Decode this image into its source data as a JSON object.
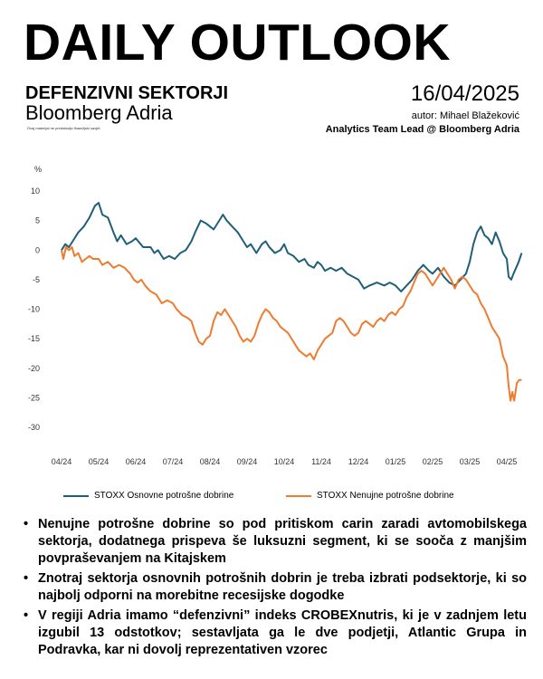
{
  "header": {
    "title": "DAILY OUTLOOK",
    "subtitle": "DEFENZIVNI SEKTORJI",
    "brand": "Bloomberg Adria",
    "disclaimer": "Ovaj materijal ne predstavlja finančijski savjet.",
    "date": "16/04/2025",
    "author": "autor: Mihael Blažeković",
    "role": "Analytics Team Lead @ Bloomberg Adria"
  },
  "chart_data": {
    "type": "line",
    "ylabel": "%",
    "ylim": [
      -30,
      10
    ],
    "yticks": [
      10,
      5,
      0,
      -5,
      -10,
      -15,
      -20,
      -25,
      -30
    ],
    "xticks": [
      "04/24",
      "05/24",
      "06/24",
      "07/24",
      "08/24",
      "09/24",
      "10/24",
      "11/24",
      "12/24",
      "01/25",
      "02/25",
      "03/25",
      "04/25"
    ],
    "grid": false,
    "legend": "bottom",
    "series": [
      {
        "name": "STOXX Osnovne potrošne dobrine",
        "color": "#1f5f7a",
        "points": [
          [
            0.0,
            0
          ],
          [
            0.1,
            1
          ],
          [
            0.2,
            0.5
          ],
          [
            0.3,
            1.5
          ],
          [
            0.45,
            3
          ],
          [
            0.6,
            4
          ],
          [
            0.75,
            5.5
          ],
          [
            0.9,
            7.5
          ],
          [
            1.0,
            8
          ],
          [
            1.1,
            6
          ],
          [
            1.25,
            5.5
          ],
          [
            1.4,
            3
          ],
          [
            1.5,
            1.5
          ],
          [
            1.6,
            2.5
          ],
          [
            1.75,
            1
          ],
          [
            1.9,
            1.5
          ],
          [
            2.0,
            2
          ],
          [
            2.2,
            0.5
          ],
          [
            2.4,
            0.5
          ],
          [
            2.5,
            -0.5
          ],
          [
            2.6,
            0
          ],
          [
            2.75,
            -1.5
          ],
          [
            2.9,
            -1
          ],
          [
            3.05,
            -1.5
          ],
          [
            3.2,
            -0.5
          ],
          [
            3.35,
            0
          ],
          [
            3.5,
            1.5
          ],
          [
            3.6,
            3
          ],
          [
            3.75,
            5
          ],
          [
            3.9,
            4.5
          ],
          [
            4.0,
            4
          ],
          [
            4.1,
            3.5
          ],
          [
            4.25,
            5
          ],
          [
            4.35,
            6
          ],
          [
            4.45,
            5
          ],
          [
            4.6,
            4
          ],
          [
            4.75,
            3
          ],
          [
            4.9,
            1.5
          ],
          [
            5.0,
            0.5
          ],
          [
            5.1,
            1
          ],
          [
            5.25,
            -0.5
          ],
          [
            5.4,
            1
          ],
          [
            5.5,
            1.5
          ],
          [
            5.6,
            0.5
          ],
          [
            5.75,
            -0.5
          ],
          [
            5.9,
            0
          ],
          [
            6.0,
            1
          ],
          [
            6.1,
            -0.5
          ],
          [
            6.25,
            -1
          ],
          [
            6.4,
            -2
          ],
          [
            6.55,
            -1.5
          ],
          [
            6.65,
            -2.5
          ],
          [
            6.8,
            -3
          ],
          [
            6.9,
            -2
          ],
          [
            7.0,
            -2.5
          ],
          [
            7.1,
            -3.5
          ],
          [
            7.25,
            -3
          ],
          [
            7.4,
            -3.5
          ],
          [
            7.55,
            -3
          ],
          [
            7.7,
            -4
          ],
          [
            7.85,
            -4.5
          ],
          [
            8.0,
            -5
          ],
          [
            8.15,
            -6.5
          ],
          [
            8.3,
            -6
          ],
          [
            8.5,
            -5.5
          ],
          [
            8.7,
            -6
          ],
          [
            8.85,
            -5.5
          ],
          [
            9.0,
            -6
          ],
          [
            9.15,
            -7
          ],
          [
            9.3,
            -6
          ],
          [
            9.45,
            -5
          ],
          [
            9.6,
            -3.5
          ],
          [
            9.75,
            -2.5
          ],
          [
            9.9,
            -3.5
          ],
          [
            10.0,
            -4
          ],
          [
            10.15,
            -3
          ],
          [
            10.3,
            -4.5
          ],
          [
            10.45,
            -5.5
          ],
          [
            10.6,
            -6
          ],
          [
            10.75,
            -5
          ],
          [
            10.9,
            -4
          ],
          [
            11.0,
            -2
          ],
          [
            11.1,
            1
          ],
          [
            11.2,
            3
          ],
          [
            11.3,
            4
          ],
          [
            11.4,
            2.5
          ],
          [
            11.5,
            2
          ],
          [
            11.6,
            1
          ],
          [
            11.7,
            3
          ],
          [
            11.8,
            1.5
          ],
          [
            11.9,
            -0.5
          ],
          [
            11.95,
            -1
          ],
          [
            12.0,
            -1.5
          ],
          [
            12.05,
            -4.5
          ],
          [
            12.12,
            -5
          ],
          [
            12.18,
            -4
          ],
          [
            12.25,
            -3
          ],
          [
            12.32,
            -2
          ],
          [
            12.4,
            -0.5
          ]
        ]
      },
      {
        "name": "STOXX Nenujne potrošne dobrine",
        "color": "#ee7b30",
        "points": [
          [
            0.0,
            0
          ],
          [
            0.05,
            -1.5
          ],
          [
            0.12,
            0.5
          ],
          [
            0.2,
            0
          ],
          [
            0.28,
            0.5
          ],
          [
            0.35,
            -1
          ],
          [
            0.45,
            -0.5
          ],
          [
            0.55,
            -2
          ],
          [
            0.65,
            -1.5
          ],
          [
            0.75,
            -1
          ],
          [
            0.85,
            -1.5
          ],
          [
            1.0,
            -1.5
          ],
          [
            1.1,
            -2.5
          ],
          [
            1.25,
            -2
          ],
          [
            1.4,
            -3
          ],
          [
            1.55,
            -2.5
          ],
          [
            1.7,
            -3
          ],
          [
            1.85,
            -4
          ],
          [
            1.95,
            -5
          ],
          [
            2.05,
            -5.5
          ],
          [
            2.15,
            -5
          ],
          [
            2.25,
            -6
          ],
          [
            2.4,
            -7
          ],
          [
            2.55,
            -7.5
          ],
          [
            2.7,
            -9
          ],
          [
            2.85,
            -8.5
          ],
          [
            3.0,
            -9
          ],
          [
            3.1,
            -10
          ],
          [
            3.25,
            -11
          ],
          [
            3.4,
            -11.5
          ],
          [
            3.5,
            -12
          ],
          [
            3.6,
            -14
          ],
          [
            3.7,
            -15.5
          ],
          [
            3.8,
            -16
          ],
          [
            3.9,
            -15
          ],
          [
            4.0,
            -14.5
          ],
          [
            4.1,
            -12
          ],
          [
            4.2,
            -10.5
          ],
          [
            4.3,
            -11
          ],
          [
            4.4,
            -10
          ],
          [
            4.5,
            -11
          ],
          [
            4.6,
            -12
          ],
          [
            4.7,
            -13
          ],
          [
            4.8,
            -14.5
          ],
          [
            4.9,
            -15.5
          ],
          [
            5.0,
            -15
          ],
          [
            5.1,
            -15.5
          ],
          [
            5.2,
            -14.5
          ],
          [
            5.3,
            -12.5
          ],
          [
            5.4,
            -11
          ],
          [
            5.5,
            -10
          ],
          [
            5.6,
            -10.5
          ],
          [
            5.7,
            -11.5
          ],
          [
            5.8,
            -12
          ],
          [
            5.9,
            -13
          ],
          [
            6.0,
            -13.5
          ],
          [
            6.1,
            -14
          ],
          [
            6.2,
            -15
          ],
          [
            6.3,
            -16
          ],
          [
            6.4,
            -17
          ],
          [
            6.5,
            -17.5
          ],
          [
            6.6,
            -18
          ],
          [
            6.7,
            -17.5
          ],
          [
            6.8,
            -18.5
          ],
          [
            6.9,
            -17
          ],
          [
            7.0,
            -16
          ],
          [
            7.1,
            -15
          ],
          [
            7.2,
            -14.5
          ],
          [
            7.3,
            -14
          ],
          [
            7.4,
            -12
          ],
          [
            7.5,
            -11.5
          ],
          [
            7.6,
            -12
          ],
          [
            7.7,
            -13
          ],
          [
            7.8,
            -14
          ],
          [
            7.9,
            -14.5
          ],
          [
            8.0,
            -14
          ],
          [
            8.1,
            -12.5
          ],
          [
            8.2,
            -12
          ],
          [
            8.3,
            -12.5
          ],
          [
            8.4,
            -13
          ],
          [
            8.5,
            -12
          ],
          [
            8.6,
            -11.5
          ],
          [
            8.7,
            -12
          ],
          [
            8.8,
            -11
          ],
          [
            8.9,
            -10.5
          ],
          [
            9.0,
            -11
          ],
          [
            9.1,
            -10
          ],
          [
            9.2,
            -9.5
          ],
          [
            9.3,
            -8
          ],
          [
            9.4,
            -7
          ],
          [
            9.5,
            -5.5
          ],
          [
            9.6,
            -4
          ],
          [
            9.7,
            -3.5
          ],
          [
            9.8,
            -4
          ],
          [
            9.9,
            -5
          ],
          [
            10.0,
            -6
          ],
          [
            10.1,
            -5
          ],
          [
            10.2,
            -4
          ],
          [
            10.3,
            -3
          ],
          [
            10.4,
            -4
          ],
          [
            10.5,
            -5
          ],
          [
            10.6,
            -6.5
          ],
          [
            10.7,
            -5
          ],
          [
            10.8,
            -4.5
          ],
          [
            10.9,
            -5
          ],
          [
            11.0,
            -6
          ],
          [
            11.1,
            -7
          ],
          [
            11.2,
            -7.5
          ],
          [
            11.3,
            -9
          ],
          [
            11.4,
            -10
          ],
          [
            11.5,
            -11.5
          ],
          [
            11.6,
            -13
          ],
          [
            11.7,
            -14
          ],
          [
            11.8,
            -15
          ],
          [
            11.9,
            -18
          ],
          [
            12.0,
            -19.5
          ],
          [
            12.05,
            -23
          ],
          [
            12.1,
            -25.5
          ],
          [
            12.15,
            -24
          ],
          [
            12.2,
            -25.5
          ],
          [
            12.27,
            -22.5
          ],
          [
            12.33,
            -22
          ],
          [
            12.4,
            -22
          ]
        ]
      }
    ]
  },
  "bullets": [
    "Nenujne potrošne dobrine so pod pritiskom carin zaradi avtomobilskega sektorja, dodatnega prispeva še luksuzni segment, ki se sooča z manjšim povpraševanjem na Kitajskem",
    "Znotraj sektorja osnovnih potrošnih dobrin je treba izbrati podsektorje, ki so najbolj odporni na morebitne recesijske dogodke",
    "V regiji Adria imamo “defenzivni” indeks CROBEXnutris, ki je v zadnjem letu izgubil 13 odstotkov; sestavljata ga le dve podjetji, Atlantic Grupa in Podravka, kar ni dovolj reprezentativen vzorec"
  ]
}
